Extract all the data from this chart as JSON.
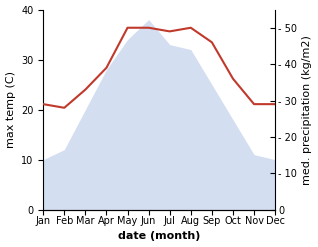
{
  "months": [
    "Jan",
    "Feb",
    "Mar",
    "Apr",
    "May",
    "Jun",
    "Jul",
    "Aug",
    "Sep",
    "Oct",
    "Nov",
    "Dec"
  ],
  "temperature": [
    10,
    12,
    20,
    28,
    34,
    38,
    33,
    32,
    25,
    18,
    11,
    10
  ],
  "precipitation": [
    29,
    28,
    33,
    39,
    50,
    50,
    49,
    50,
    46,
    36,
    29,
    29
  ],
  "temp_fill_color": "#b8c8e8",
  "temp_fill_alpha": 0.6,
  "precip_color": "#c0392b",
  "precip_linewidth": 1.5,
  "ylabel_left": "max temp (C)",
  "ylabel_right": "med. precipitation (kg/m2)",
  "xlabel": "date (month)",
  "ylim_left": [
    0,
    40
  ],
  "ylim_right": [
    0,
    55
  ],
  "yticks_left": [
    0,
    10,
    20,
    30,
    40
  ],
  "yticks_right": [
    0,
    10,
    20,
    30,
    40,
    50
  ],
  "ylabel_fontsize": 8,
  "xlabel_fontsize": 8,
  "tick_fontsize": 7,
  "background_color": "#ffffff"
}
